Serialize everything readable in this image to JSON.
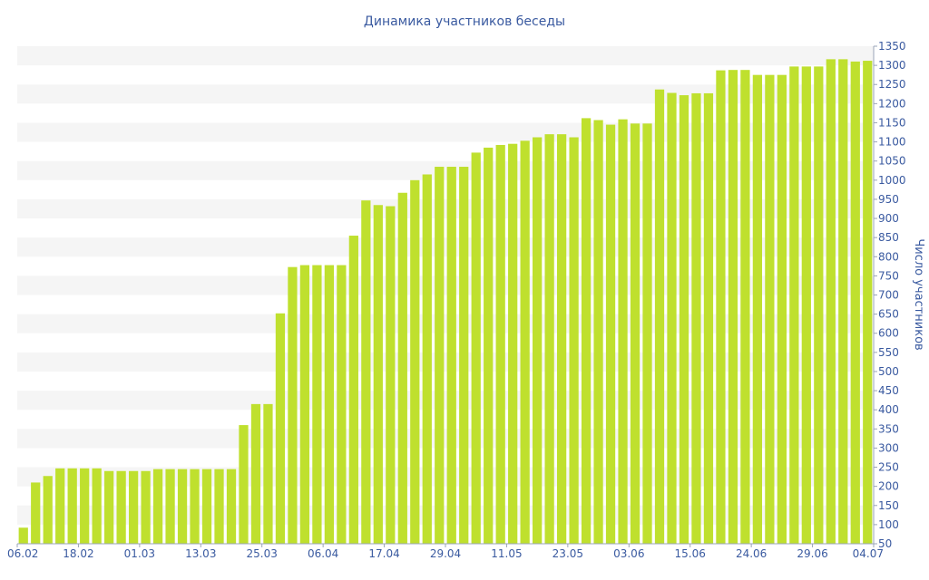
{
  "chart_data": {
    "type": "bar",
    "title": "Динамика участников беседы",
    "ylabel": "Число участников",
    "xlabel": "",
    "ylim": [
      50,
      1350
    ],
    "y_ticks": [
      50,
      100,
      150,
      200,
      250,
      300,
      350,
      400,
      450,
      500,
      550,
      600,
      650,
      700,
      750,
      800,
      850,
      900,
      950,
      1000,
      1050,
      1100,
      1150,
      1200,
      1250,
      1300,
      1350
    ],
    "y_axis_side": "right",
    "x_tick_labels": [
      "06.02",
      "18.02",
      "01.03",
      "13.03",
      "25.03",
      "06.04",
      "17.04",
      "29.04",
      "11.05",
      "23.05",
      "03.06",
      "15.06",
      "24.06",
      "29.06",
      "04.07"
    ],
    "values": [
      92,
      210,
      227,
      247,
      247,
      247,
      247,
      240,
      240,
      240,
      240,
      245,
      245,
      245,
      245,
      245,
      245,
      245,
      360,
      415,
      415,
      652,
      773,
      778,
      778,
      778,
      778,
      855,
      947,
      935,
      932,
      967,
      1000,
      1015,
      1035,
      1035,
      1035,
      1072,
      1085,
      1092,
      1095,
      1103,
      1112,
      1120,
      1120,
      1112,
      1162,
      1157,
      1145,
      1159,
      1148,
      1148,
      1237,
      1228,
      1222,
      1227,
      1227,
      1287,
      1288,
      1288,
      1275,
      1275,
      1275,
      1297,
      1297,
      1297,
      1316,
      1316,
      1310,
      1312
    ],
    "bar_color": "#bfe02e",
    "band_color": "#f5f5f5",
    "text_color": "#3a5aa0",
    "grid": "alternating bands"
  }
}
